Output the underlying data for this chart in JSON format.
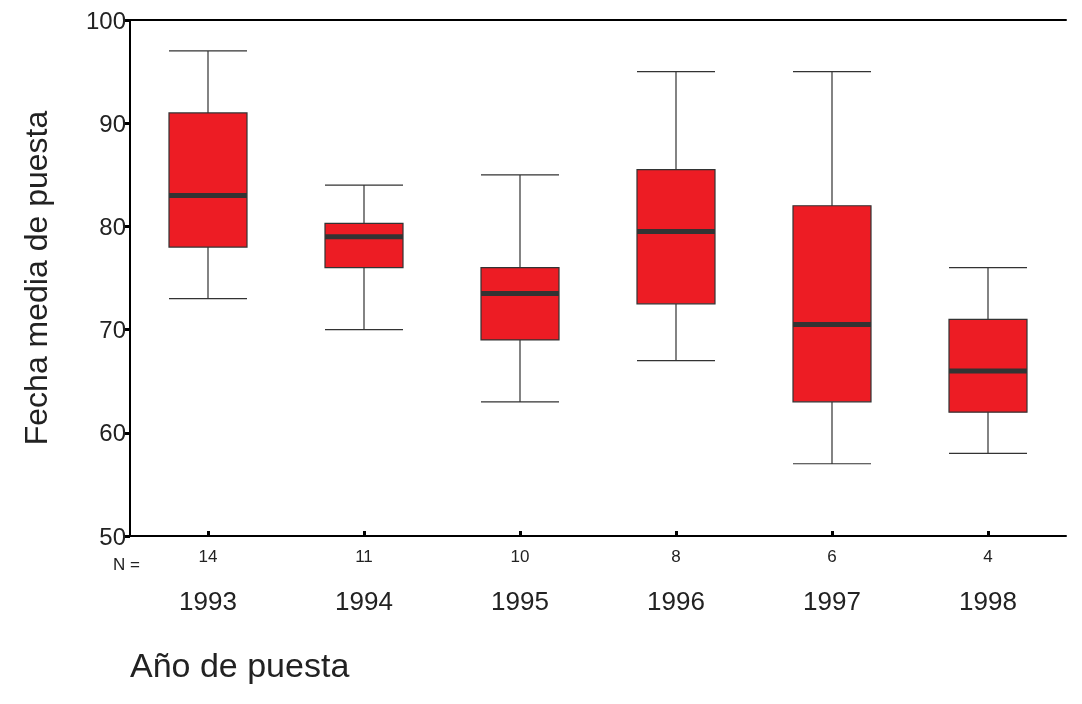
{
  "chart_data": {
    "type": "box",
    "xlabel": "Año de puesta",
    "ylabel": "Fecha media de puesta",
    "categories": [
      "1993",
      "1994",
      "1995",
      "1996",
      "1997",
      "1998"
    ],
    "boxes": [
      {
        "low": 73,
        "q1": 78,
        "median": 83,
        "q3": 91,
        "high": 97
      },
      {
        "low": 70,
        "q1": 76,
        "median": 79,
        "q3": 80.3,
        "high": 84
      },
      {
        "low": 63,
        "q1": 69,
        "median": 73.5,
        "q3": 76,
        "high": 85
      },
      {
        "low": 67,
        "q1": 72.5,
        "median": 79.5,
        "q3": 85.5,
        "high": 95
      },
      {
        "low": 57,
        "q1": 63,
        "median": 70.5,
        "q3": 82,
        "high": 95
      },
      {
        "low": 58,
        "q1": 62,
        "median": 66,
        "q3": 71,
        "high": 76
      }
    ],
    "color": "#ed1c24",
    "ylim": [
      50,
      100
    ],
    "yticks": [
      50,
      60,
      70,
      80,
      90,
      100
    ],
    "grid": false,
    "annotations": [
      "N =",
      "14",
      "11",
      "10",
      "8",
      "6",
      "4"
    ]
  }
}
